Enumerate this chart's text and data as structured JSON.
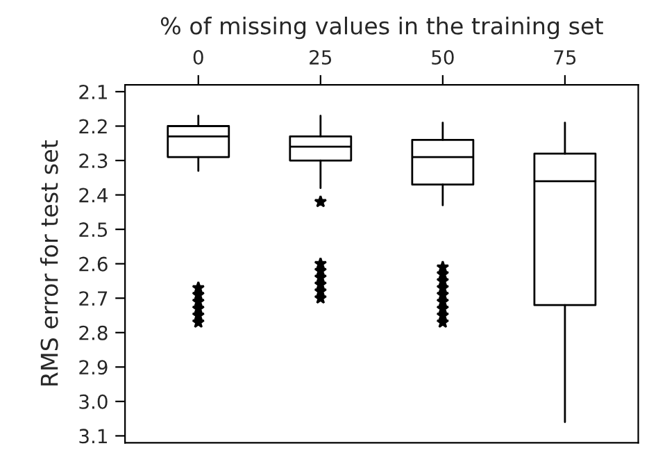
{
  "chart_data": {
    "type": "box",
    "xlabel": "% of missing values in the training set",
    "ylabel": "RMS error for test set",
    "categories": [
      "0",
      "25",
      "50",
      "75"
    ],
    "boxes": [
      {
        "low": 2.17,
        "q1": 2.2,
        "median": 2.23,
        "q3": 2.29,
        "high": 2.33,
        "outliers": [
          2.67,
          2.69,
          2.71,
          2.73,
          2.75,
          2.77
        ]
      },
      {
        "low": 2.17,
        "q1": 2.23,
        "median": 2.26,
        "q3": 2.3,
        "high": 2.38,
        "outliers": [
          2.42,
          2.6,
          2.62,
          2.64,
          2.66,
          2.68,
          2.7
        ]
      },
      {
        "low": 2.19,
        "q1": 2.24,
        "median": 2.29,
        "q3": 2.37,
        "high": 2.43,
        "outliers": [
          2.61,
          2.63,
          2.65,
          2.67,
          2.69,
          2.71,
          2.73,
          2.75,
          2.77
        ]
      },
      {
        "low": 2.19,
        "q1": 2.28,
        "median": 2.36,
        "q3": 2.72,
        "high": 3.06
      }
    ],
    "ylim": [
      3.12,
      2.08
    ],
    "yticks": [
      {
        "value": 2.1,
        "label": "2.1"
      },
      2.2,
      2.3,
      2.4,
      2.5,
      2.6,
      2.7,
      2.8,
      2.9,
      {
        "value": 3.0,
        "label": "3.0"
      },
      3.1
    ],
    "grid": false,
    "legend": false
  }
}
